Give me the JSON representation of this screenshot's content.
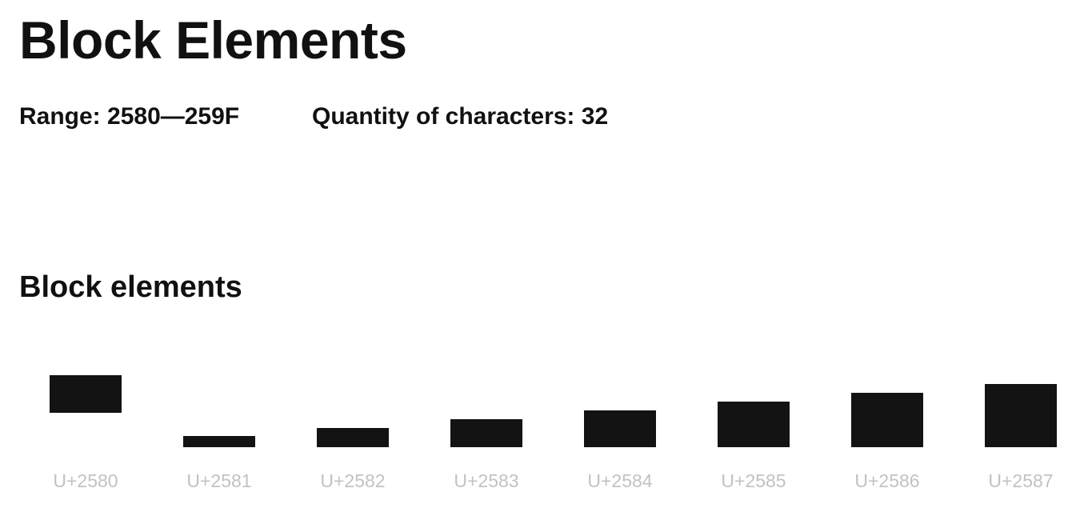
{
  "page": {
    "title": "Block Elements",
    "range_text": "Range: 2580—259F",
    "quantity_text": "Quantity of characters: 32"
  },
  "section": {
    "title": "Block elements"
  },
  "characters": [
    {
      "code": "U+2580",
      "glyph": "upper-half-block",
      "fill": "upper 1/2"
    },
    {
      "code": "U+2581",
      "glyph": "lower-one-eighth-block",
      "fill": "lower 1/8"
    },
    {
      "code": "U+2582",
      "glyph": "lower-one-quarter-block",
      "fill": "lower 1/4"
    },
    {
      "code": "U+2583",
      "glyph": "lower-three-eighths-block",
      "fill": "lower 3/8"
    },
    {
      "code": "U+2584",
      "glyph": "lower-half-block",
      "fill": "lower 1/2"
    },
    {
      "code": "U+2585",
      "glyph": "lower-five-eighths-block",
      "fill": "lower 5/8"
    },
    {
      "code": "U+2586",
      "glyph": "lower-three-quarters-block",
      "fill": "lower 3/4"
    },
    {
      "code": "U+2587",
      "glyph": "lower-seven-eighths-block",
      "fill": "lower 7/8"
    }
  ],
  "colors": {
    "glyph": "#131313",
    "code_label": "#c2c2c2",
    "text": "#111111",
    "background": "#ffffff"
  }
}
